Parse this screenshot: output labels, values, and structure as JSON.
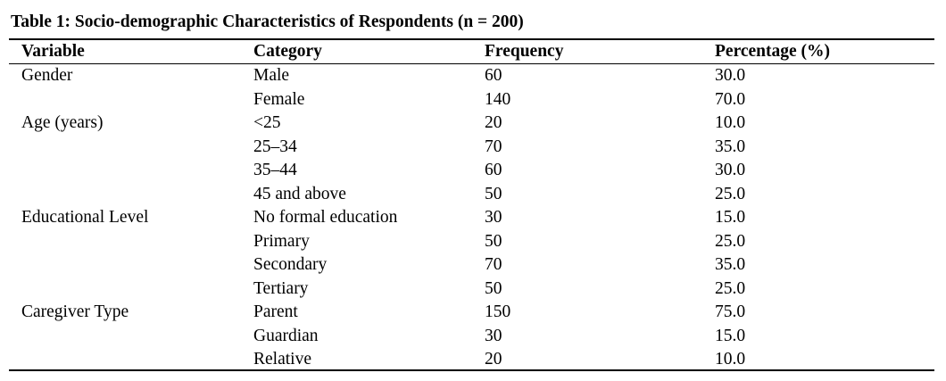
{
  "caption": "Table 1: Socio-demographic Characteristics of Respondents (n = 200)",
  "table": {
    "headers": [
      "Variable",
      "Category",
      "Frequency",
      "Percentage (%)"
    ],
    "rows": [
      {
        "variable": "Gender",
        "category": "Male",
        "frequency": "60",
        "percentage": "30.0"
      },
      {
        "variable": "",
        "category": "Female",
        "frequency": "140",
        "percentage": "70.0"
      },
      {
        "variable": "Age (years)",
        "category": "<25",
        "frequency": "20",
        "percentage": "10.0"
      },
      {
        "variable": "",
        "category": "25–34",
        "frequency": "70",
        "percentage": "35.0"
      },
      {
        "variable": "",
        "category": "35–44",
        "frequency": "60",
        "percentage": "30.0"
      },
      {
        "variable": "",
        "category": "45 and above",
        "frequency": "50",
        "percentage": "25.0"
      },
      {
        "variable": "Educational Level",
        "category": "No formal education",
        "frequency": "30",
        "percentage": "15.0"
      },
      {
        "variable": "",
        "category": "Primary",
        "frequency": "50",
        "percentage": "25.0"
      },
      {
        "variable": "",
        "category": "Secondary",
        "frequency": "70",
        "percentage": "35.0"
      },
      {
        "variable": "",
        "category": "Tertiary",
        "frequency": "50",
        "percentage": "25.0"
      },
      {
        "variable": "Caregiver Type",
        "category": "Parent",
        "frequency": "150",
        "percentage": "75.0"
      },
      {
        "variable": "",
        "category": "Guardian",
        "frequency": "30",
        "percentage": "15.0"
      },
      {
        "variable": "",
        "category": "Relative",
        "frequency": "20",
        "percentage": "10.0"
      }
    ]
  }
}
